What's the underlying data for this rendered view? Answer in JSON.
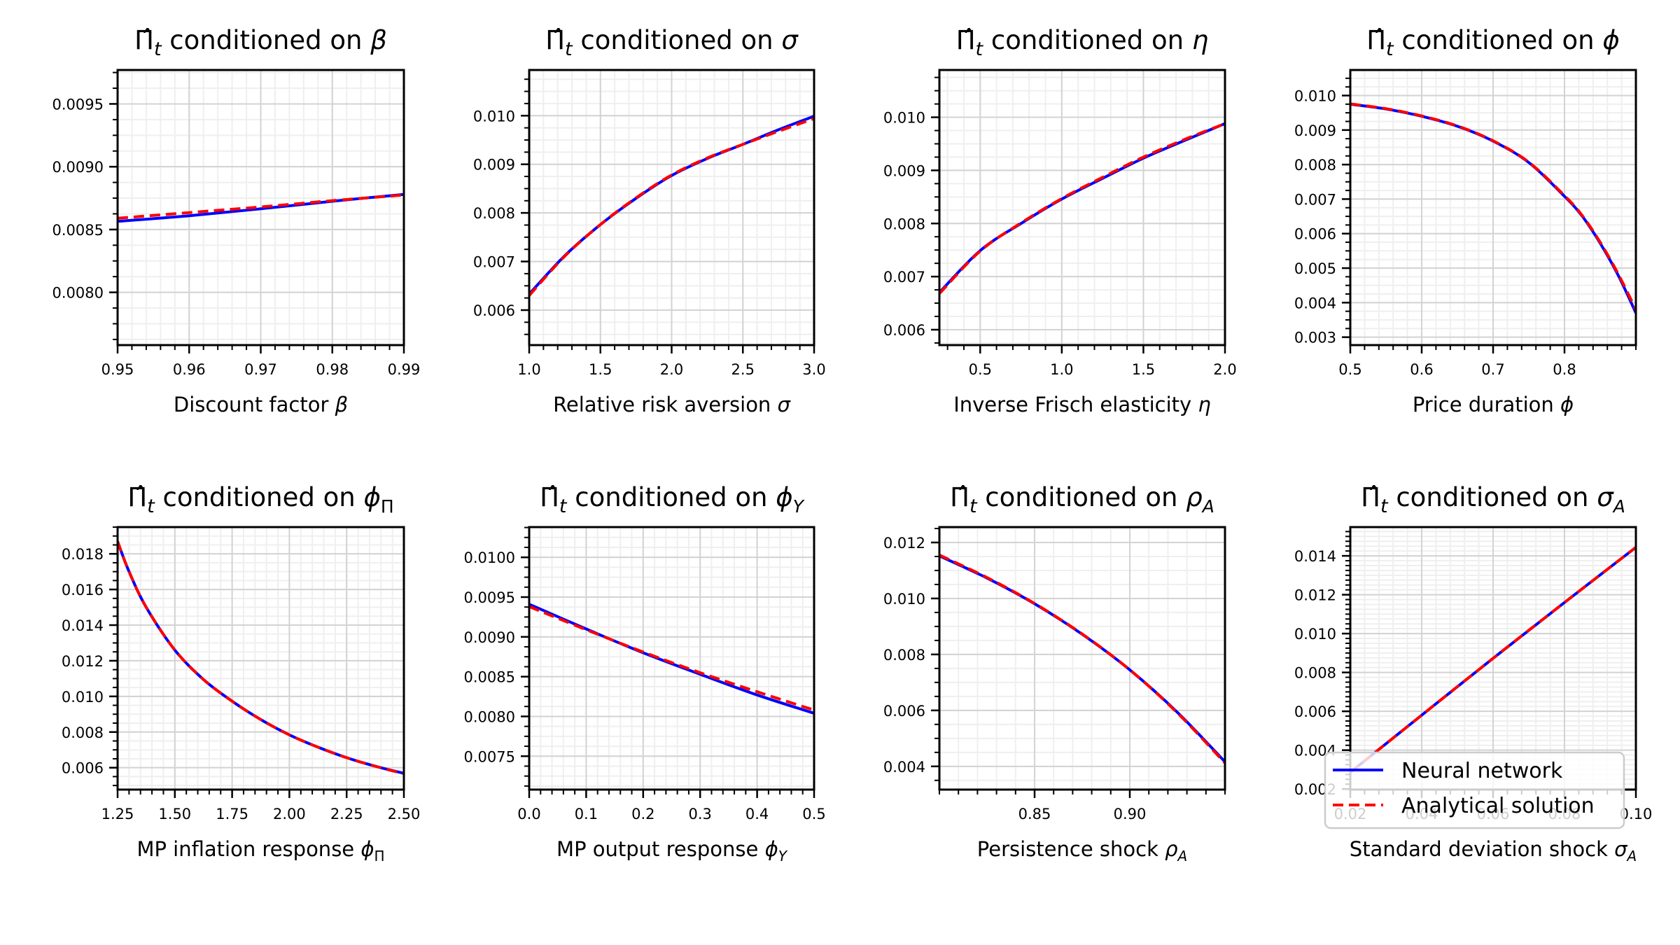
{
  "figure": {
    "colors": {
      "neural_network": "#0000ff",
      "analytical": "#ff0000",
      "grid_major": "#d3d3d3",
      "grid_minor": "#efefef",
      "axes": "#000000"
    },
    "legend": {
      "placement": "lower-right of last panel",
      "entries": [
        {
          "label": "Neural network",
          "style": "solid",
          "color": "#0000ff"
        },
        {
          "label": "Analytical solution",
          "style": "dashed",
          "color": "#ff0000"
        }
      ]
    }
  },
  "chart_data": [
    {
      "type": "line",
      "title_prefix": "Π̂",
      "title_sub": "t",
      "title_text": " conditioned on ",
      "title_symbol": "β",
      "title_symbol_sub": "",
      "xlabel": "Discount factor ",
      "xlabel_symbol": "β",
      "xlabel_symbol_sub": "",
      "xlim": [
        0.95,
        0.99
      ],
      "ylim": [
        0.00758,
        0.00977
      ],
      "xticks": [
        0.95,
        0.96,
        0.97,
        0.98,
        0.99
      ],
      "xtick_labels": [
        "0.95",
        "0.96",
        "0.97",
        "0.98",
        "0.99"
      ],
      "xminor_step": 0.002,
      "yticks": [
        0.008,
        0.0085,
        0.009,
        0.0095
      ],
      "ytick_labels": [
        "0.0080",
        "0.0085",
        "0.0090",
        "0.0095"
      ],
      "yminor_step": 0.000125,
      "grid": true,
      "x": [
        0.95,
        0.96,
        0.97,
        0.98,
        0.99
      ],
      "series": [
        {
          "name": "Neural network",
          "values": [
            0.008565,
            0.00861,
            0.008665,
            0.008725,
            0.00878
          ]
        },
        {
          "name": "Analytical solution",
          "values": [
            0.00859,
            0.008635,
            0.00868,
            0.00873,
            0.008775
          ]
        }
      ]
    },
    {
      "type": "line",
      "title_prefix": "Π̂",
      "title_sub": "t",
      "title_text": " conditioned on ",
      "title_symbol": "σ",
      "title_symbol_sub": "",
      "xlabel": "Relative risk aversion ",
      "xlabel_symbol": "σ",
      "xlabel_symbol_sub": "",
      "xlim": [
        1.0,
        3.0
      ],
      "ylim": [
        0.00528,
        0.01094
      ],
      "xticks": [
        1.0,
        1.5,
        2.0,
        2.5,
        3.0
      ],
      "xtick_labels": [
        "1.0",
        "1.5",
        "2.0",
        "2.5",
        "3.0"
      ],
      "xminor_step": 0.1,
      "yticks": [
        0.006,
        0.007,
        0.008,
        0.009,
        0.01
      ],
      "ytick_labels": [
        "0.006",
        "0.007",
        "0.008",
        "0.009",
        "0.010"
      ],
      "yminor_step": 0.00025,
      "grid": true,
      "x": [
        1.0,
        1.25,
        1.5,
        1.75,
        2.0,
        2.25,
        2.5,
        2.75,
        3.0
      ],
      "series": [
        {
          "name": "Neural network",
          "values": [
            0.00633,
            0.00712,
            0.00776,
            0.0083,
            0.00877,
            0.00912,
            0.00941,
            0.00971,
            0.00999
          ]
        },
        {
          "name": "Analytical solution",
          "values": [
            0.0063,
            0.00711,
            0.00776,
            0.00831,
            0.00878,
            0.00913,
            0.00941,
            0.00968,
            0.00994
          ]
        }
      ]
    },
    {
      "type": "line",
      "title_prefix": "Π̂",
      "title_sub": "t",
      "title_text": " conditioned on ",
      "title_symbol": "η",
      "title_symbol_sub": "",
      "xlabel": "Inverse Frisch elasticity ",
      "xlabel_symbol": "η",
      "xlabel_symbol_sub": "",
      "xlim": [
        0.25,
        2.0
      ],
      "ylim": [
        0.00571,
        0.01089
      ],
      "xticks": [
        0.5,
        1.0,
        1.5,
        2.0
      ],
      "xtick_labels": [
        "0.5",
        "1.0",
        "1.5",
        "2.0"
      ],
      "xminor_step": 0.1,
      "yticks": [
        0.006,
        0.007,
        0.008,
        0.009,
        0.01
      ],
      "ytick_labels": [
        "0.006",
        "0.007",
        "0.008",
        "0.009",
        "0.010"
      ],
      "yminor_step": 0.00025,
      "grid": true,
      "x": [
        0.25,
        0.5,
        0.75,
        1.0,
        1.25,
        1.5,
        1.75,
        2.0
      ],
      "series": [
        {
          "name": "Neural network",
          "values": [
            0.0067,
            0.00749,
            0.008,
            0.00846,
            0.00885,
            0.00923,
            0.00956,
            0.00988
          ]
        },
        {
          "name": "Analytical solution",
          "values": [
            0.00668,
            0.00748,
            0.00801,
            0.00847,
            0.00887,
            0.00925,
            0.00958,
            0.00988
          ]
        }
      ]
    },
    {
      "type": "line",
      "title_prefix": "Π̂",
      "title_sub": "t",
      "title_text": " conditioned on ",
      "title_symbol": "ϕ",
      "title_symbol_sub": "",
      "xlabel": "Price duration ",
      "xlabel_symbol": "ϕ",
      "xlabel_symbol_sub": "",
      "xlim": [
        0.5,
        0.9
      ],
      "ylim": [
        0.00277,
        0.01074
      ],
      "xticks": [
        0.5,
        0.6,
        0.7,
        0.8
      ],
      "xtick_labels": [
        "0.5",
        "0.6",
        "0.7",
        "0.8"
      ],
      "xminor_step": 0.02,
      "yticks": [
        0.003,
        0.004,
        0.005,
        0.006,
        0.007,
        0.008,
        0.009,
        0.01
      ],
      "ytick_labels": [
        "0.003",
        "0.004",
        "0.005",
        "0.006",
        "0.007",
        "0.008",
        "0.009",
        "0.010"
      ],
      "yminor_step": 0.00025,
      "grid": true,
      "x": [
        0.5,
        0.55,
        0.6,
        0.65,
        0.7,
        0.75,
        0.8,
        0.825,
        0.85,
        0.875,
        0.9
      ],
      "series": [
        {
          "name": "Neural network",
          "values": [
            0.00975,
            0.00961,
            0.0094,
            0.00911,
            0.00868,
            0.00806,
            0.00708,
            0.0065,
            0.00572,
            0.0048,
            0.0037
          ]
        },
        {
          "name": "Analytical solution",
          "values": [
            0.00976,
            0.00962,
            0.00941,
            0.00912,
            0.00869,
            0.00807,
            0.0071,
            0.00652,
            0.00575,
            0.00484,
            0.0038
          ]
        }
      ]
    },
    {
      "type": "line",
      "title_prefix": "Π̂",
      "title_sub": "t",
      "title_text": " conditioned on ",
      "title_symbol": "ϕ",
      "title_symbol_sub": "Π",
      "xlabel": "MP inflation response ",
      "xlabel_symbol": "ϕ",
      "xlabel_symbol_sub": "Π",
      "xlim": [
        1.25,
        2.5
      ],
      "ylim": [
        0.00477,
        0.0195
      ],
      "xticks": [
        1.25,
        1.5,
        1.75,
        2.0,
        2.25,
        2.5
      ],
      "xtick_labels": [
        "1.25",
        "1.50",
        "1.75",
        "2.00",
        "2.25",
        "2.50"
      ],
      "xminor_step": 0.05,
      "yticks": [
        0.006,
        0.008,
        0.01,
        0.012,
        0.014,
        0.016,
        0.018
      ],
      "ytick_labels": [
        "0.006",
        "0.008",
        "0.010",
        "0.012",
        "0.014",
        "0.016",
        "0.018"
      ],
      "yminor_step": 0.0005,
      "grid": true,
      "x": [
        1.25,
        1.3,
        1.375,
        1.5,
        1.625,
        1.75,
        1.875,
        2.0,
        2.125,
        2.25,
        2.375,
        2.5
      ],
      "series": [
        {
          "name": "Neural network",
          "values": [
            0.0187,
            0.017,
            0.015,
            0.0126,
            0.01095,
            0.00973,
            0.0087,
            0.00784,
            0.00715,
            0.00656,
            0.00608,
            0.00568
          ]
        },
        {
          "name": "Analytical solution",
          "values": [
            0.0187,
            0.017,
            0.015,
            0.0126,
            0.01095,
            0.00973,
            0.0087,
            0.00784,
            0.00715,
            0.00656,
            0.00608,
            0.00566
          ]
        }
      ]
    },
    {
      "type": "line",
      "title_prefix": "Π̂",
      "title_sub": "t",
      "title_text": " conditioned on ",
      "title_symbol": "ϕ",
      "title_symbol_sub": "Y",
      "xlabel": "MP output response ",
      "xlabel_symbol": "ϕ",
      "xlabel_symbol_sub": "Y",
      "xlim": [
        0.0,
        0.5
      ],
      "ylim": [
        0.00708,
        0.01038
      ],
      "xticks": [
        0.0,
        0.1,
        0.2,
        0.3,
        0.4,
        0.5
      ],
      "xtick_labels": [
        "0.0",
        "0.1",
        "0.2",
        "0.3",
        "0.4",
        "0.5"
      ],
      "xminor_step": 0.02,
      "yticks": [
        0.0075,
        0.008,
        0.0085,
        0.009,
        0.0095,
        0.01
      ],
      "ytick_labels": [
        "0.0075",
        "0.0080",
        "0.0085",
        "0.0090",
        "0.0095",
        "0.0100"
      ],
      "yminor_step": 0.000125,
      "grid": true,
      "x": [
        0.0,
        0.1,
        0.2,
        0.3,
        0.4,
        0.5
      ],
      "series": [
        {
          "name": "Neural network",
          "values": [
            0.00941,
            0.0091,
            0.0088,
            0.00853,
            0.00827,
            0.00804
          ]
        },
        {
          "name": "Analytical solution",
          "values": [
            0.00938,
            0.00909,
            0.00881,
            0.00855,
            0.00831,
            0.00808
          ]
        }
      ]
    },
    {
      "type": "line",
      "title_prefix": "Π̂",
      "title_sub": "t",
      "title_text": " conditioned on ",
      "title_symbol": "ρ",
      "title_symbol_sub": "A",
      "xlabel": "Persistence shock ",
      "xlabel_symbol": "ρ",
      "xlabel_symbol_sub": "A",
      "xlim": [
        0.8,
        0.95
      ],
      "ylim": [
        0.00317,
        0.01255
      ],
      "xticks": [
        0.85,
        0.9
      ],
      "xtick_labels": [
        "0.85",
        "0.90"
      ],
      "xminor_step": 0.01,
      "yticks": [
        0.004,
        0.006,
        0.008,
        0.01,
        0.012
      ],
      "ytick_labels": [
        "0.004",
        "0.006",
        "0.008",
        "0.010",
        "0.012"
      ],
      "yminor_step": 0.0005,
      "grid": true,
      "x": [
        0.8,
        0.825,
        0.85,
        0.875,
        0.9,
        0.925,
        0.95
      ],
      "series": [
        {
          "name": "Neural network",
          "values": [
            0.01152,
            0.01073,
            0.00981,
            0.00872,
            0.00745,
            0.00593,
            0.00416
          ]
        },
        {
          "name": "Analytical solution",
          "values": [
            0.01155,
            0.01075,
            0.00982,
            0.00873,
            0.00745,
            0.00591,
            0.00412
          ]
        }
      ]
    },
    {
      "type": "line",
      "title_prefix": "Π̂",
      "title_sub": "t",
      "title_text": " conditioned on ",
      "title_symbol": "σ",
      "title_symbol_sub": "A",
      "xlabel": "Standard deviation shock ",
      "xlabel_symbol": "σ",
      "xlabel_symbol_sub": "A",
      "xlim": [
        0.02,
        0.1
      ],
      "ylim": [
        0.00197,
        0.01548
      ],
      "xticks": [
        0.02,
        0.04,
        0.06,
        0.08,
        0.1
      ],
      "xtick_labels": [
        "0.02",
        "0.04",
        "0.06",
        "0.08",
        "0.10"
      ],
      "xminor_step": 0.004,
      "yticks": [
        0.002,
        0.004,
        0.006,
        0.008,
        0.01,
        0.012,
        0.014
      ],
      "ytick_labels": [
        "0.002",
        "0.004",
        "0.006",
        "0.008",
        "0.010",
        "0.012",
        "0.014"
      ],
      "yminor_step": 0.00025,
      "grid": true,
      "x": [
        0.02,
        0.04,
        0.06,
        0.08,
        0.1
      ],
      "series": [
        {
          "name": "Neural network",
          "values": [
            0.00286,
            0.0058,
            0.00873,
            0.0116,
            0.01444
          ]
        },
        {
          "name": "Analytical solution",
          "values": [
            0.00286,
            0.0058,
            0.00873,
            0.0116,
            0.01444
          ]
        }
      ]
    }
  ]
}
